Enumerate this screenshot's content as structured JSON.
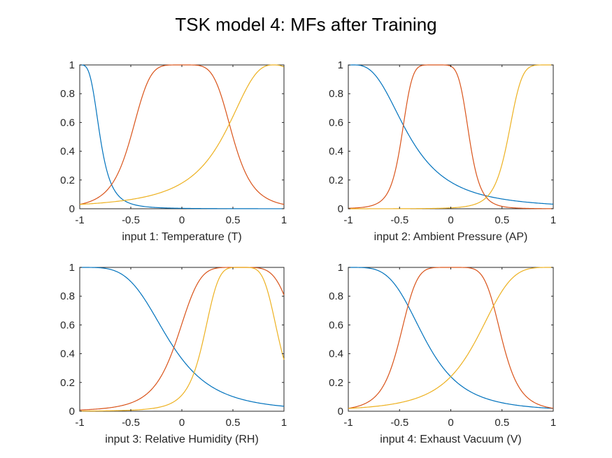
{
  "figure": {
    "title": "TSK model 4: MFs after Training",
    "colors": [
      "#0072BD",
      "#D95319",
      "#EDB120"
    ]
  },
  "chart_data": [
    {
      "type": "line",
      "xlabel": "input 1: Temperature (T)",
      "xlim": [
        -1,
        1
      ],
      "ylim": [
        0,
        1
      ],
      "xticks": [
        "-1",
        "-0.5",
        "0",
        "0.5",
        "1"
      ],
      "yticks": [
        "0",
        "0.2",
        "0.4",
        "0.6",
        "0.8",
        "1"
      ],
      "grid": false,
      "series": [
        {
          "mf": "gbell",
          "a": 0.2,
          "b": 1.8,
          "c": -1.0
        },
        {
          "mf": "gbell",
          "a": 0.5,
          "b": 2.5,
          "c": 0.0
        },
        {
          "mf": "gbell",
          "a": 0.5,
          "b": 1.3,
          "c": 0.9
        }
      ]
    },
    {
      "type": "line",
      "xlabel": "input 2: Ambient Pressure (AP)",
      "xlim": [
        -1,
        1
      ],
      "ylim": [
        0,
        1
      ],
      "xticks": [
        "-1",
        "-0.5",
        "0",
        "0.5",
        "1"
      ],
      "yticks": [
        "0",
        "0.2",
        "0.4",
        "0.6",
        "0.8",
        "1"
      ],
      "grid": false,
      "series": [
        {
          "mf": "gbell",
          "a": 0.55,
          "b": 1.35,
          "c": -0.95
        },
        {
          "mf": "gbell",
          "a": 0.33,
          "b": 3.0,
          "c": -0.15
        },
        {
          "mf": "gbell",
          "a": 0.42,
          "b": 3.0,
          "c": 0.98
        }
      ]
    },
    {
      "type": "line",
      "xlabel": "input 3: Relative Humidity (RH)",
      "xlim": [
        -1,
        1
      ],
      "ylim": [
        0,
        1
      ],
      "xticks": [
        "-1",
        "-0.5",
        "0",
        "0.5",
        "1"
      ],
      "yticks": [
        "0",
        "0.2",
        "0.4",
        "0.6",
        "0.8",
        "1"
      ],
      "grid": false,
      "series": [
        {
          "mf": "gbell",
          "a": 0.87,
          "b": 2.0,
          "c": -1.0
        },
        {
          "mf": "gbell",
          "a": 0.6,
          "b": 2.5,
          "c": 0.55
        },
        {
          "mf": "gbell",
          "a": 0.37,
          "b": 2.3,
          "c": 0.58
        }
      ]
    },
    {
      "type": "line",
      "xlabel": "input 4: Exhaust Vacuum (V)",
      "xlim": [
        -1,
        1
      ],
      "ylim": [
        0,
        1
      ],
      "xticks": [
        "-1",
        "-0.5",
        "0",
        "0.5",
        "1"
      ],
      "yticks": [
        "0",
        "0.2",
        "0.4",
        "0.6",
        "0.8",
        "1"
      ],
      "grid": false,
      "series": [
        {
          "mf": "gbell",
          "a": 0.75,
          "b": 2.0,
          "c": -1.0
        },
        {
          "mf": "gbell",
          "a": 0.5,
          "b": 2.8,
          "c": 0.0
        },
        {
          "mf": "gbell",
          "a": 0.75,
          "b": 2.0,
          "c": 1.0
        }
      ]
    }
  ]
}
